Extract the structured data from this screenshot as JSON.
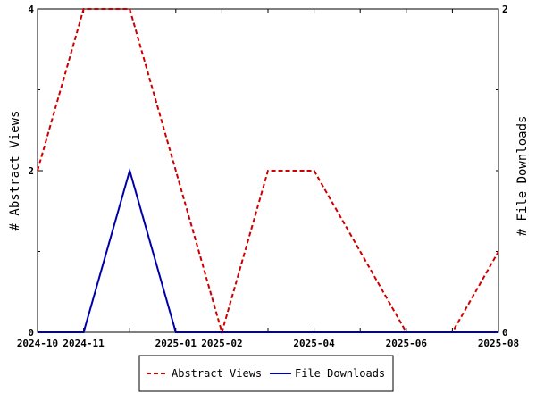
{
  "chart_data": {
    "type": "line",
    "title": "",
    "ylabel_left": "# Abstract Views",
    "ylabel_right": "# File Downloads",
    "x_ticks_labeled": [
      "2024-10",
      "2024-11",
      "2025-01",
      "2025-02",
      "2025-04",
      "2025-06",
      "2025-08"
    ],
    "x": [
      "2024-10",
      "2024-11",
      "2024-12",
      "2025-01",
      "2025-02",
      "2025-03",
      "2025-04",
      "2025-05",
      "2025-06",
      "2025-07",
      "2025-08"
    ],
    "ylim_left": [
      0,
      4
    ],
    "ylim_right": [
      0,
      2
    ],
    "yticks_left": [
      "0",
      "2",
      "4"
    ],
    "yticks_right": [
      "0",
      "2"
    ],
    "grid": false,
    "legend_position": "bottom",
    "series": [
      {
        "name": "Abstract Views",
        "axis": "left",
        "color": "#cc0000",
        "dash": "dashed",
        "values": [
          2,
          4,
          4,
          2,
          0,
          2,
          2,
          1,
          0,
          0,
          1
        ]
      },
      {
        "name": "File Downloads",
        "axis": "right",
        "color": "#0000aa",
        "dash": "solid",
        "values": [
          0,
          0,
          1,
          0,
          0,
          0,
          0,
          0,
          0,
          0,
          0
        ]
      }
    ]
  }
}
